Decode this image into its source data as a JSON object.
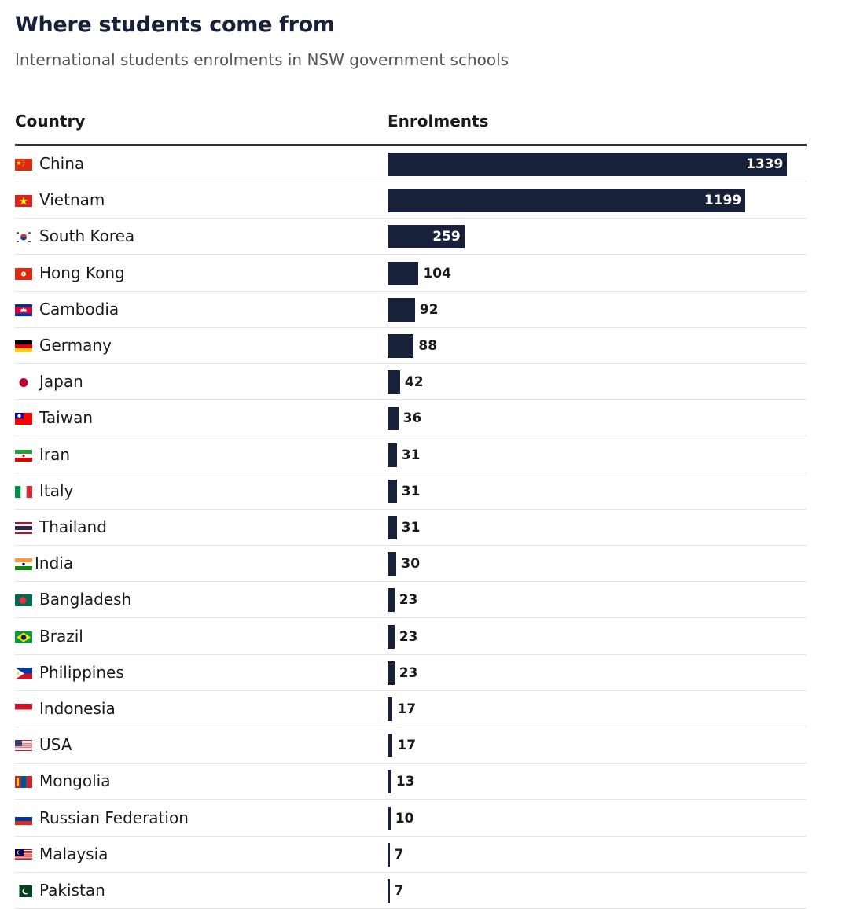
{
  "header": {
    "title": "Where students come from",
    "subtitle": "International students enrolments in NSW government schools"
  },
  "columns": {
    "country": "Country",
    "enrolments": "Enrolments"
  },
  "colors": {
    "bar": "#17213a",
    "value_inside": "#ffffff",
    "value_outside": "#1a1a1a"
  },
  "chart_data": {
    "type": "bar",
    "orientation": "horizontal",
    "title": "Where students come from",
    "subtitle": "International students enrolments in NSW government schools",
    "categories": [
      "China",
      "Vietnam",
      "South Korea",
      "Hong Kong",
      "Cambodia",
      "Germany",
      "Japan",
      "Taiwan",
      "Iran",
      "Italy",
      "Thailand",
      "India",
      "Bangladesh",
      "Brazil",
      "Philippines",
      "Indonesia",
      "USA",
      "Mongolia",
      "Russian Federation",
      "Malaysia",
      "Pakistan"
    ],
    "values": [
      1339,
      1199,
      259,
      104,
      92,
      88,
      42,
      36,
      31,
      31,
      31,
      30,
      23,
      23,
      23,
      17,
      17,
      13,
      10,
      7,
      7
    ],
    "xlim": [
      0,
      1339
    ],
    "grid": false,
    "legend": "none"
  },
  "flags": [
    "china-flag-icon",
    "vietnam-flag-icon",
    "south-korea-flag-icon",
    "hong-kong-flag-icon",
    "cambodia-flag-icon",
    "germany-flag-icon",
    "japan-flag-icon",
    "taiwan-flag-icon",
    "iran-flag-icon",
    "italy-flag-icon",
    "thailand-flag-icon",
    "india-flag-icon",
    "bangladesh-flag-icon",
    "brazil-flag-icon",
    "philippines-flag-icon",
    "indonesia-flag-icon",
    "usa-flag-icon",
    "mongolia-flag-icon",
    "russia-flag-icon",
    "malaysia-flag-icon",
    "pakistan-flag-icon"
  ]
}
